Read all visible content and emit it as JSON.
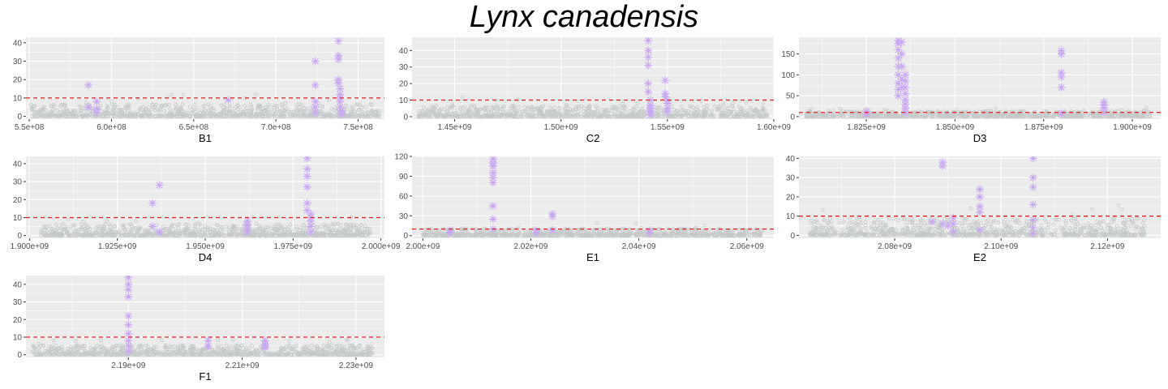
{
  "figure": {
    "title": "Lynx canadensis",
    "colors": {
      "panel_bg": "#ebebeb",
      "grid": "#ffffff",
      "background_points": "#c4c9c9",
      "highlight_points": "#c9a6f5",
      "threshold_line": "#e41a1c"
    }
  },
  "chart_data": [
    {
      "type": "scatter",
      "xlabel": "B1",
      "x_ticks": [
        "5.5e+08",
        "6.0e+08",
        "6.5e+08",
        "7.0e+08",
        "7.5e+08"
      ],
      "x_tick_values": [
        550000000,
        600000000,
        650000000,
        700000000,
        750000000
      ],
      "y_ticks": [
        0,
        10,
        20,
        30,
        40
      ],
      "xlim": [
        548000000,
        766000000
      ],
      "ylim": [
        -1.5,
        43
      ],
      "threshold": 10,
      "background_x_range": [
        551000000,
        763000000
      ],
      "background_y_max": 12,
      "highlight_series": {
        "x": [
          586000000,
          586000000,
          591000000,
          591000000,
          591000000,
          671000000,
          724000000,
          724000000,
          724000000,
          724000000,
          724000000,
          738000000,
          738000000,
          738000000,
          738000000,
          738000000,
          739000000,
          739000000,
          739000000,
          739000000,
          739000000,
          740000000,
          740000000
        ],
        "y": [
          17,
          5,
          8,
          4,
          2,
          9,
          30,
          17,
          8,
          5,
          2,
          41,
          33,
          31,
          20,
          18,
          15,
          12,
          10,
          8,
          5,
          3,
          1
        ]
      }
    },
    {
      "type": "scatter",
      "xlabel": "C2",
      "x_ticks": [
        "1.45e+09",
        "1.50e+09",
        "1.55e+09",
        "1.60e+09"
      ],
      "x_tick_values": [
        1450000000,
        1500000000,
        1550000000,
        1600000000
      ],
      "y_ticks": [
        0,
        10,
        20,
        30,
        40
      ],
      "xlim": [
        1430000000,
        1600000000
      ],
      "ylim": [
        -1.5,
        48
      ],
      "threshold": 10,
      "background_x_range": [
        1433000000,
        1597000000
      ],
      "background_y_max": 12,
      "highlight_series": {
        "x": [
          1541000000,
          1541000000,
          1541000000,
          1541000000,
          1541000000,
          1541000000,
          1542000000,
          1542000000,
          1542000000,
          1542000000,
          1542000000,
          1549000000,
          1549000000,
          1549000000,
          1550000000,
          1550000000,
          1550000000,
          1550000000
        ],
        "y": [
          46,
          40,
          36,
          31,
          20,
          15,
          10,
          7,
          5,
          3,
          1,
          22,
          14,
          12,
          10,
          8,
          5,
          3
        ]
      }
    },
    {
      "type": "scatter",
      "xlabel": "D3",
      "x_ticks": [
        "1.825e+09",
        "1.850e+09",
        "1.875e+09",
        "1.900e+09"
      ],
      "x_tick_values": [
        1825000000,
        1850000000,
        1875000000,
        1900000000
      ],
      "y_ticks": [
        0,
        50,
        100,
        150
      ],
      "xlim": [
        1806000000,
        1908000000
      ],
      "ylim": [
        -6,
        190
      ],
      "threshold": 10,
      "background_x_range": [
        1808000000,
        1905000000
      ],
      "background_y_max": 25,
      "highlight_series": {
        "x": [
          1825000000,
          1825000000,
          1834000000,
          1834000000,
          1834000000,
          1834000000,
          1834000000,
          1834000000,
          1834000000,
          1834000000,
          1834000000,
          1835000000,
          1835000000,
          1835000000,
          1835000000,
          1835000000,
          1836000000,
          1836000000,
          1836000000,
          1836000000,
          1836000000,
          1836000000,
          1836000000,
          1836000000,
          1880000000,
          1880000000,
          1880000000,
          1880000000,
          1880000000,
          1880000000,
          1892000000,
          1892000000,
          1892000000,
          1892000000
        ],
        "y": [
          12,
          6,
          182,
          175,
          160,
          140,
          120,
          100,
          80,
          65,
          50,
          178,
          150,
          120,
          90,
          70,
          100,
          85,
          70,
          55,
          40,
          30,
          20,
          10,
          158,
          150,
          105,
          95,
          70,
          8,
          35,
          28,
          20,
          10
        ]
      }
    },
    {
      "type": "scatter",
      "xlabel": "D4",
      "x_ticks": [
        "1.900e+09",
        "1.925e+09",
        "1.950e+09",
        "1.975e+09",
        "2.000e+09"
      ],
      "x_tick_values": [
        1900000000,
        1925000000,
        1950000000,
        1975000000,
        2000000000
      ],
      "y_ticks": [
        0,
        10,
        20,
        30,
        40
      ],
      "xlim": [
        1899000000,
        2001000000
      ],
      "ylim": [
        -1.5,
        44
      ],
      "threshold": 10,
      "background_x_range": [
        1903000000,
        1997000000
      ],
      "background_y_max": 12,
      "highlight_series": {
        "x": [
          1935000000,
          1935000000,
          1937000000,
          1937000000,
          1962000000,
          1962000000,
          1962000000,
          1962000000,
          1979000000,
          1979000000,
          1979000000,
          1979000000,
          1979000000,
          1979000000,
          1980000000,
          1980000000,
          1980000000,
          1980000000,
          1980000000
        ],
        "y": [
          18,
          5,
          28,
          2,
          8,
          6,
          4,
          2,
          43,
          37,
          33,
          27,
          18,
          14,
          12,
          10,
          8,
          5,
          2
        ]
      }
    },
    {
      "type": "scatter",
      "xlabel": "E1",
      "x_ticks": [
        "2.00e+09",
        "2.02e+09",
        "2.04e+09",
        "2.06e+09"
      ],
      "x_tick_values": [
        2000000000,
        2020000000,
        2040000000,
        2060000000
      ],
      "y_ticks": [
        0,
        30,
        60,
        90,
        120
      ],
      "xlim": [
        1998000000,
        2065000000
      ],
      "ylim": [
        -4,
        120
      ],
      "threshold": 10,
      "background_x_range": [
        2000000000,
        2063000000
      ],
      "background_y_max": 20,
      "highlight_series": {
        "x": [
          2005000000,
          2005000000,
          2013000000,
          2013000000,
          2013000000,
          2013000000,
          2013000000,
          2013000000,
          2013000000,
          2013000000,
          2013000000,
          2021000000,
          2021000000,
          2024000000,
          2024000000,
          2024000000,
          2042000000,
          2042000000
        ],
        "y": [
          8,
          4,
          116,
          110,
          105,
          95,
          88,
          80,
          45,
          25,
          10,
          8,
          4,
          33,
          29,
          8,
          8,
          4
        ]
      }
    },
    {
      "type": "scatter",
      "xlabel": "E2",
      "x_ticks": [
        "2.08e+09",
        "2.10e+09",
        "2.12e+09"
      ],
      "x_tick_values": [
        2080000000,
        2100000000,
        2120000000
      ],
      "y_ticks": [
        0,
        10,
        20,
        30,
        40
      ],
      "xlim": [
        2062000000,
        2130000000
      ],
      "ylim": [
        -1.5,
        41
      ],
      "threshold": 10,
      "background_x_range": [
        2064000000,
        2127000000
      ],
      "background_y_max": 16,
      "highlight_series": {
        "x": [
          2087000000,
          2089000000,
          2089000000,
          2089000000,
          2090000000,
          2091000000,
          2091000000,
          2091000000,
          2096000000,
          2096000000,
          2096000000,
          2096000000,
          2096000000,
          2106000000,
          2106000000,
          2106000000,
          2106000000,
          2106000000,
          2106000000,
          2106000000
        ],
        "y": [
          7,
          38,
          36,
          6,
          5,
          9,
          6,
          2,
          24,
          20,
          15,
          12,
          3,
          40,
          30,
          25,
          16,
          8,
          4,
          1
        ]
      }
    },
    {
      "type": "scatter",
      "xlabel": "F1",
      "x_ticks": [
        "2.19e+09",
        "2.21e+09",
        "2.23e+09"
      ],
      "x_tick_values": [
        2190000000,
        2210000000,
        2230000000
      ],
      "y_ticks": [
        0,
        10,
        20,
        30,
        40
      ],
      "xlim": [
        2172000000,
        2235000000
      ],
      "ylim": [
        -1.5,
        45
      ],
      "threshold": 10,
      "background_x_range": [
        2173000000,
        2233000000
      ],
      "background_y_max": 10,
      "highlight_series": {
        "x": [
          2190000000,
          2190000000,
          2190000000,
          2190000000,
          2190000000,
          2190000000,
          2190000000,
          2190000000,
          2190000000,
          2190000000,
          2204000000,
          2204000000,
          2214000000,
          2214000000,
          2214000000,
          2214000000
        ],
        "y": [
          44,
          40,
          37,
          33,
          22,
          17,
          12,
          8,
          5,
          2,
          8,
          5,
          8,
          6,
          5,
          4
        ]
      }
    }
  ]
}
